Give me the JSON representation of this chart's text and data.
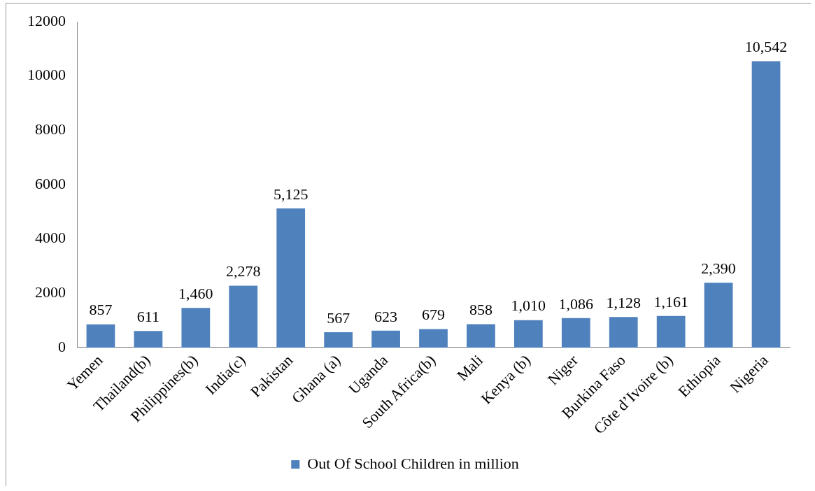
{
  "chart_data": {
    "type": "bar",
    "categories": [
      "Yemen",
      "Thailand(b)",
      "Philippines(b)",
      "India(c)",
      "Pakistan",
      "Ghana (a)",
      "Uganda",
      "South Africa(b)",
      "Mali",
      "Kenya (b)",
      "Niger",
      "Burkina Faso",
      "Côte d’Ivoire (b)",
      "Ethiopia",
      "Nigeria"
    ],
    "series": [
      {
        "name": "Out Of School Children in million",
        "color": "#4f81bd",
        "values": [
          857,
          611,
          1460,
          2278,
          5125,
          567,
          623,
          679,
          858,
          1010,
          1086,
          1128,
          1161,
          2390,
          10542
        ],
        "value_labels": [
          "857",
          "611",
          "1,460",
          "2,278",
          "5,125",
          "567",
          "623",
          "679",
          "858",
          "1,010",
          "1,086",
          "1,128",
          "1,161",
          "2,390",
          "10,542"
        ]
      }
    ],
    "ylim": [
      0,
      12000
    ],
    "yticks": [
      0,
      2000,
      4000,
      6000,
      8000,
      10000,
      12000
    ],
    "grid": false,
    "legend": "bottom"
  }
}
